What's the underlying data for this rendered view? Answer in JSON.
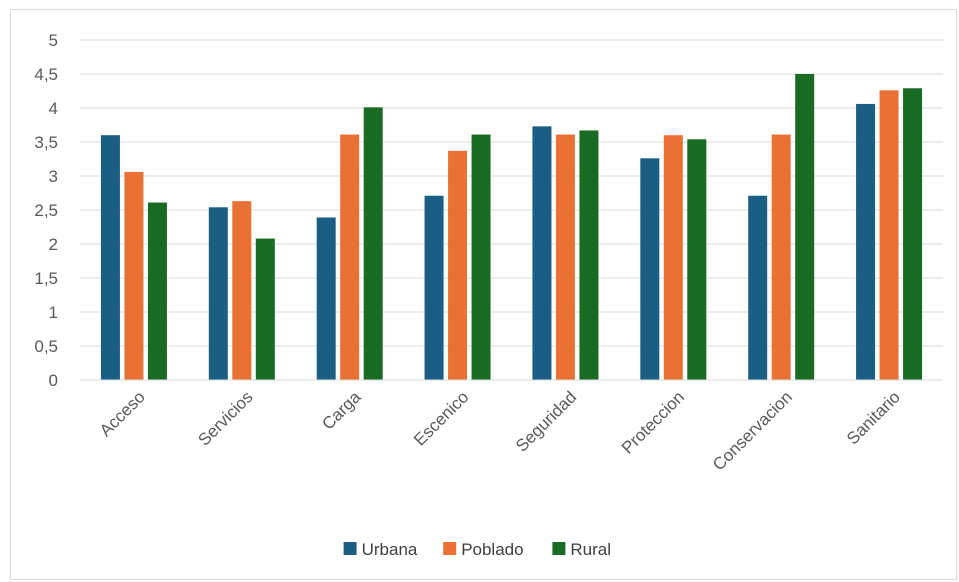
{
  "chart_data": {
    "type": "bar",
    "categories": [
      "Acceso",
      "Servicios",
      "Carga",
      "Escenico",
      "Seguridad",
      "Proteccion",
      "Conservacion",
      "Sanitario"
    ],
    "series": [
      {
        "name": "Urbana",
        "color": "#1a5e83",
        "values": [
          3.6,
          2.54,
          2.39,
          2.71,
          3.73,
          3.26,
          2.71,
          4.06
        ]
      },
      {
        "name": "Poblado",
        "color": "#e97133",
        "values": [
          3.06,
          2.63,
          3.61,
          3.37,
          3.61,
          3.6,
          3.61,
          4.26
        ]
      },
      {
        "name": "Rural",
        "color": "#196b24",
        "values": [
          2.61,
          2.08,
          4.01,
          3.61,
          3.67,
          3.54,
          4.5,
          4.29
        ]
      }
    ],
    "yticks": [
      "0",
      "0,5",
      "1",
      "1,5",
      "2",
      "2,5",
      "3",
      "3,5",
      "4",
      "4,5",
      "5"
    ],
    "ylim": [
      0,
      5
    ],
    "grid": true,
    "legend_position": "bottom",
    "title": "",
    "xlabel": "",
    "ylabel": ""
  }
}
